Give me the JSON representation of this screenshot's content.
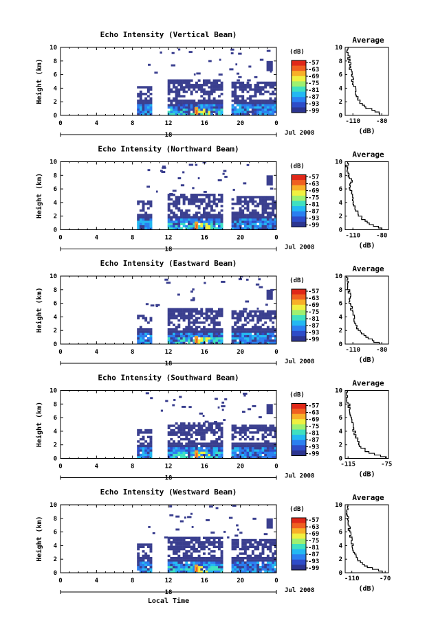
{
  "colors": {
    "colorbar_stops": [
      "#2c3590",
      "#2e4cc8",
      "#2b7ff0",
      "#23b8f2",
      "#3fe0c0",
      "#9ef070",
      "#f0f040",
      "#f8b028",
      "#f06020",
      "#e02818"
    ],
    "echo_low": "#3a3f8f",
    "echo_mid": "#2f78e0",
    "echo_high": "#f0a030"
  },
  "x_axis_label": "Local Time",
  "date_label": "Jul 2008",
  "day_label": "18",
  "x_ticks": [
    "0",
    "4",
    "8",
    "12",
    "16",
    "20",
    "0"
  ],
  "y_ticks": [
    "0",
    "2",
    "4",
    "6",
    "8",
    "10"
  ],
  "y_label": "Height (km)",
  "colorbar_unit": "(dB)",
  "colorbar_ticks": [
    "-57",
    "-63",
    "-69",
    "-75",
    "-81",
    "-87",
    "-93",
    "-99"
  ],
  "avg_title": "Average",
  "avg_xlabel": "(dB)",
  "panels": [
    {
      "title": "Echo Intensity (Vertical Beam)",
      "avg_xticks": [
        "-110",
        "-80"
      ],
      "avg_xlim": [
        -118,
        -73
      ]
    },
    {
      "title": "Echo Intensity (Northward Beam)",
      "avg_xticks": [
        "-110",
        "-80"
      ],
      "avg_xlim": [
        -118,
        -73
      ]
    },
    {
      "title": "Echo Intensity (Eastward Beam)",
      "avg_xticks": [
        "-110",
        "-80"
      ],
      "avg_xlim": [
        -118,
        -73
      ]
    },
    {
      "title": "Echo Intensity (Southward Beam)",
      "avg_xticks": [
        "-115",
        "-75"
      ],
      "avg_xlim": [
        -118,
        -73
      ]
    },
    {
      "title": "Echo Intensity (Westward Beam)",
      "avg_xticks": [
        "-110",
        "-70"
      ],
      "avg_xlim": [
        -118,
        -66
      ]
    }
  ],
  "chart_data": [
    {
      "type": "heatmap",
      "title": "Echo Intensity (Vertical Beam)",
      "xlabel": "",
      "ylabel": "Height (km)",
      "xlim": [
        0,
        24
      ],
      "ylim": [
        0,
        10
      ],
      "colorbar": {
        "label": "(dB)",
        "range": [
          -99,
          -54
        ]
      },
      "data_segments_hours": [
        [
          8.5,
          10
        ],
        [
          11.9,
          17.9
        ],
        [
          19,
          24
        ]
      ],
      "avg_profile": {
        "xlim": [
          -118,
          -73
        ],
        "xlabel": "(dB)",
        "height_km": [
          0,
          0.5,
          1,
          1.5,
          2,
          3,
          4,
          5,
          6,
          7,
          8,
          9,
          10
        ],
        "db": [
          -82,
          -86,
          -96,
          -100,
          -103,
          -106,
          -108,
          -110,
          -112,
          -113,
          -114,
          -115,
          -115
        ]
      }
    },
    {
      "type": "heatmap",
      "title": "Echo Intensity (Northward Beam)",
      "xlabel": "",
      "ylabel": "Height (km)",
      "xlim": [
        0,
        24
      ],
      "ylim": [
        0,
        10
      ],
      "colorbar": {
        "label": "(dB)",
        "range": [
          -99,
          -54
        ]
      },
      "data_segments_hours": [
        [
          8.5,
          10
        ],
        [
          11.9,
          17.9
        ],
        [
          19,
          24
        ]
      ],
      "avg_profile": {
        "xlim": [
          -118,
          -73
        ],
        "xlabel": "(dB)",
        "height_km": [
          0,
          0.5,
          1,
          1.5,
          2,
          3,
          4,
          5,
          6,
          7,
          8,
          9,
          10
        ],
        "db": [
          -80,
          -88,
          -96,
          -100,
          -104,
          -107,
          -109,
          -111,
          -113,
          -112,
          -115,
          -116,
          -116
        ]
      }
    },
    {
      "type": "heatmap",
      "title": "Echo Intensity (Eastward Beam)",
      "xlabel": "",
      "ylabel": "Height (km)",
      "xlim": [
        0,
        24
      ],
      "ylim": [
        0,
        10
      ],
      "colorbar": {
        "label": "(dB)",
        "range": [
          -99,
          -54
        ]
      },
      "data_segments_hours": [
        [
          8.5,
          10
        ],
        [
          11.9,
          17.9
        ],
        [
          19,
          24
        ]
      ],
      "avg_profile": {
        "xlim": [
          -118,
          -73
        ],
        "xlabel": "(dB)",
        "height_km": [
          0,
          0.5,
          1,
          1.5,
          2,
          3,
          4,
          5,
          6,
          7,
          8,
          9,
          10
        ],
        "db": [
          -84,
          -90,
          -97,
          -101,
          -104,
          -107,
          -109,
          -111,
          -113,
          -113,
          -115,
          -116,
          -116
        ]
      }
    },
    {
      "type": "heatmap",
      "title": "Echo Intensity (Southward Beam)",
      "xlabel": "",
      "ylabel": "Height (km)",
      "xlim": [
        0,
        24
      ],
      "ylim": [
        0,
        10
      ],
      "colorbar": {
        "label": "(dB)",
        "range": [
          -99,
          -54
        ]
      },
      "data_segments_hours": [
        [
          8.5,
          10
        ],
        [
          11.9,
          17.9
        ],
        [
          19,
          24
        ]
      ],
      "avg_profile": {
        "xlim": [
          -118,
          -73
        ],
        "xlabel": "(dB)",
        "height_km": [
          0,
          0.5,
          1,
          1.5,
          2,
          3,
          4,
          5,
          6,
          7,
          8,
          9,
          10
        ],
        "db": [
          -76,
          -88,
          -96,
          -101,
          -104,
          -107,
          -109,
          -111,
          -113,
          -113,
          -115,
          -116,
          -116
        ]
      }
    },
    {
      "type": "heatmap",
      "title": "Echo Intensity (Westward Beam)",
      "xlabel": "Local Time",
      "ylabel": "Height (km)",
      "xlim": [
        0,
        24
      ],
      "ylim": [
        0,
        10
      ],
      "colorbar": {
        "label": "(dB)",
        "range": [
          -99,
          -54
        ]
      },
      "data_segments_hours": [
        [
          8.5,
          10
        ],
        [
          11.9,
          17.9
        ],
        [
          19,
          24
        ]
      ],
      "avg_profile": {
        "xlim": [
          -118,
          -66
        ],
        "xlabel": "(dB)",
        "height_km": [
          0,
          0.5,
          1,
          1.5,
          2,
          3,
          4,
          5,
          6,
          7,
          8,
          9,
          10
        ],
        "db": [
          -73,
          -85,
          -95,
          -100,
          -104,
          -107,
          -109,
          -111,
          -113,
          -113,
          -115,
          -116,
          -116
        ]
      }
    }
  ]
}
